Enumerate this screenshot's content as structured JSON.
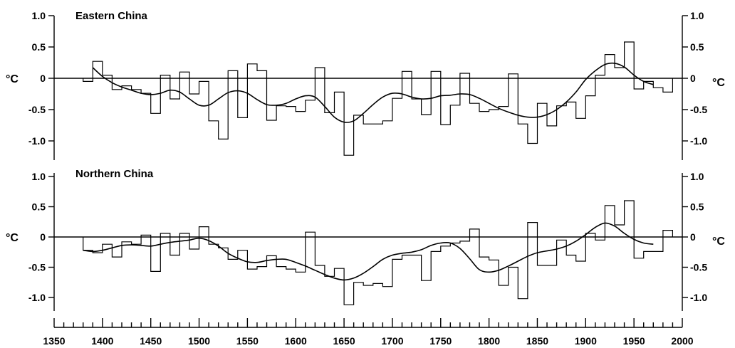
{
  "chart_data": {
    "type": "line",
    "xlim": [
      1350,
      2000
    ],
    "x_ticks": [
      1350,
      1400,
      1450,
      1500,
      1550,
      1600,
      1650,
      1700,
      1750,
      1800,
      1850,
      1900,
      1950,
      2000
    ],
    "y_unit": "°C",
    "panels": [
      {
        "title": "Eastern China",
        "ylim": [
          -1.3,
          1.0
        ],
        "y_ticks": [
          "1.0",
          "0.5",
          "0",
          "-0.5",
          "-1.0"
        ],
        "y_tick_values": [
          1.0,
          0.5,
          0,
          -0.5,
          -1.0
        ],
        "series": [
          {
            "type": "step",
            "bin_width": 10,
            "x": [
              1380,
              1390,
              1400,
              1410,
              1420,
              1430,
              1440,
              1450,
              1460,
              1470,
              1480,
              1490,
              1500,
              1510,
              1520,
              1530,
              1540,
              1550,
              1560,
              1570,
              1580,
              1590,
              1600,
              1610,
              1620,
              1630,
              1640,
              1650,
              1660,
              1670,
              1680,
              1690,
              1700,
              1710,
              1720,
              1730,
              1740,
              1750,
              1760,
              1770,
              1780,
              1790,
              1800,
              1810,
              1820,
              1830,
              1840,
              1850,
              1860,
              1870,
              1880,
              1890,
              1900,
              1910,
              1920,
              1930,
              1940,
              1950,
              1960,
              1970,
              1980
            ],
            "values": [
              -0.05,
              0.27,
              0.05,
              -0.18,
              -0.12,
              -0.18,
              -0.24,
              -0.56,
              0.05,
              -0.33,
              0.1,
              -0.25,
              -0.05,
              -0.68,
              -0.97,
              0.12,
              -0.63,
              0.23,
              0.12,
              -0.67,
              -0.44,
              -0.45,
              -0.53,
              -0.35,
              0.17,
              -0.55,
              -0.22,
              -1.23,
              -0.59,
              -0.73,
              -0.73,
              -0.68,
              -0.32,
              0.11,
              -0.33,
              -0.58,
              0.11,
              -0.74,
              -0.43,
              0.08,
              -0.4,
              -0.53,
              -0.5,
              -0.45,
              0.07,
              -0.73,
              -1.04,
              -0.4,
              -0.76,
              -0.44,
              -0.38,
              -0.64,
              -0.28,
              0.05,
              0.38,
              0.17,
              0.58,
              -0.17,
              -0.05,
              -0.15,
              -0.22
            ]
          },
          {
            "type": "smooth",
            "x": [
              1390,
              1400,
              1410,
              1420,
              1430,
              1440,
              1450,
              1460,
              1470,
              1480,
              1490,
              1500,
              1510,
              1520,
              1530,
              1540,
              1550,
              1560,
              1570,
              1580,
              1590,
              1600,
              1610,
              1620,
              1630,
              1640,
              1650,
              1660,
              1670,
              1680,
              1690,
              1700,
              1710,
              1720,
              1730,
              1740,
              1750,
              1760,
              1770,
              1780,
              1790,
              1800,
              1810,
              1820,
              1830,
              1840,
              1850,
              1860,
              1870,
              1880,
              1890,
              1900,
              1910,
              1920,
              1930,
              1940,
              1950,
              1960,
              1970
            ],
            "values": [
              0.17,
              0.03,
              -0.07,
              -0.14,
              -0.19,
              -0.24,
              -0.26,
              -0.24,
              -0.19,
              -0.22,
              -0.33,
              -0.43,
              -0.43,
              -0.33,
              -0.23,
              -0.2,
              -0.24,
              -0.34,
              -0.42,
              -0.43,
              -0.4,
              -0.33,
              -0.28,
              -0.3,
              -0.45,
              -0.62,
              -0.7,
              -0.68,
              -0.56,
              -0.42,
              -0.3,
              -0.24,
              -0.25,
              -0.3,
              -0.33,
              -0.32,
              -0.28,
              -0.27,
              -0.25,
              -0.26,
              -0.32,
              -0.4,
              -0.48,
              -0.54,
              -0.59,
              -0.62,
              -0.62,
              -0.58,
              -0.5,
              -0.38,
              -0.22,
              -0.02,
              0.12,
              0.22,
              0.24,
              0.18,
              0.05,
              -0.05,
              -0.1
            ]
          }
        ]
      },
      {
        "title": "Northern China",
        "ylim": [
          -1.25,
          1.0
        ],
        "y_ticks": [
          "1.0",
          "0.5",
          "0",
          "-0.5",
          "-1.0"
        ],
        "y_tick_values": [
          1.0,
          0.5,
          0,
          -0.5,
          -1.0
        ],
        "series": [
          {
            "type": "step",
            "bin_width": 10,
            "x": [
              1380,
              1390,
              1400,
              1410,
              1420,
              1430,
              1440,
              1450,
              1460,
              1470,
              1480,
              1490,
              1500,
              1510,
              1520,
              1530,
              1540,
              1550,
              1560,
              1570,
              1580,
              1590,
              1600,
              1610,
              1620,
              1630,
              1640,
              1650,
              1660,
              1670,
              1680,
              1690,
              1700,
              1710,
              1720,
              1730,
              1740,
              1750,
              1760,
              1770,
              1780,
              1790,
              1800,
              1810,
              1820,
              1830,
              1840,
              1850,
              1860,
              1870,
              1880,
              1890,
              1900,
              1910,
              1920,
              1930,
              1940,
              1950,
              1960,
              1970,
              1980
            ],
            "values": [
              -0.22,
              -0.26,
              -0.12,
              -0.33,
              -0.08,
              -0.12,
              0.03,
              -0.57,
              0.06,
              -0.3,
              0.06,
              -0.2,
              0.17,
              -0.12,
              -0.18,
              -0.37,
              -0.22,
              -0.53,
              -0.49,
              -0.31,
              -0.49,
              -0.53,
              -0.58,
              0.08,
              -0.47,
              -0.65,
              -0.52,
              -1.12,
              -0.75,
              -0.8,
              -0.77,
              -0.82,
              -0.37,
              -0.3,
              -0.3,
              -0.72,
              -0.24,
              -0.15,
              -0.1,
              -0.07,
              0.13,
              -0.33,
              -0.38,
              -0.8,
              -0.5,
              -1.02,
              0.24,
              -0.47,
              -0.47,
              -0.05,
              -0.3,
              -0.4,
              0.06,
              -0.05,
              0.52,
              0.2,
              0.6,
              -0.35,
              -0.24,
              -0.24,
              0.11
            ]
          },
          {
            "type": "smooth",
            "x": [
              1380,
              1390,
              1400,
              1410,
              1420,
              1430,
              1440,
              1450,
              1460,
              1470,
              1480,
              1490,
              1500,
              1510,
              1520,
              1530,
              1540,
              1550,
              1560,
              1570,
              1580,
              1590,
              1600,
              1610,
              1620,
              1630,
              1640,
              1650,
              1660,
              1670,
              1680,
              1690,
              1700,
              1710,
              1720,
              1730,
              1740,
              1750,
              1760,
              1770,
              1780,
              1790,
              1800,
              1810,
              1820,
              1830,
              1840,
              1850,
              1860,
              1870,
              1880,
              1890,
              1900,
              1910,
              1920,
              1930,
              1940,
              1950,
              1960,
              1970
            ],
            "values": [
              -0.22,
              -0.24,
              -0.22,
              -0.18,
              -0.14,
              -0.13,
              -0.14,
              -0.15,
              -0.12,
              -0.09,
              -0.07,
              -0.05,
              -0.02,
              -0.06,
              -0.15,
              -0.27,
              -0.35,
              -0.41,
              -0.42,
              -0.39,
              -0.37,
              -0.37,
              -0.42,
              -0.48,
              -0.55,
              -0.62,
              -0.68,
              -0.71,
              -0.68,
              -0.6,
              -0.49,
              -0.37,
              -0.3,
              -0.27,
              -0.25,
              -0.21,
              -0.14,
              -0.1,
              -0.1,
              -0.19,
              -0.36,
              -0.54,
              -0.58,
              -0.55,
              -0.48,
              -0.4,
              -0.32,
              -0.26,
              -0.23,
              -0.2,
              -0.15,
              -0.07,
              0.04,
              0.16,
              0.23,
              0.18,
              0.06,
              -0.04,
              -0.1,
              -0.12
            ]
          }
        ]
      }
    ]
  }
}
